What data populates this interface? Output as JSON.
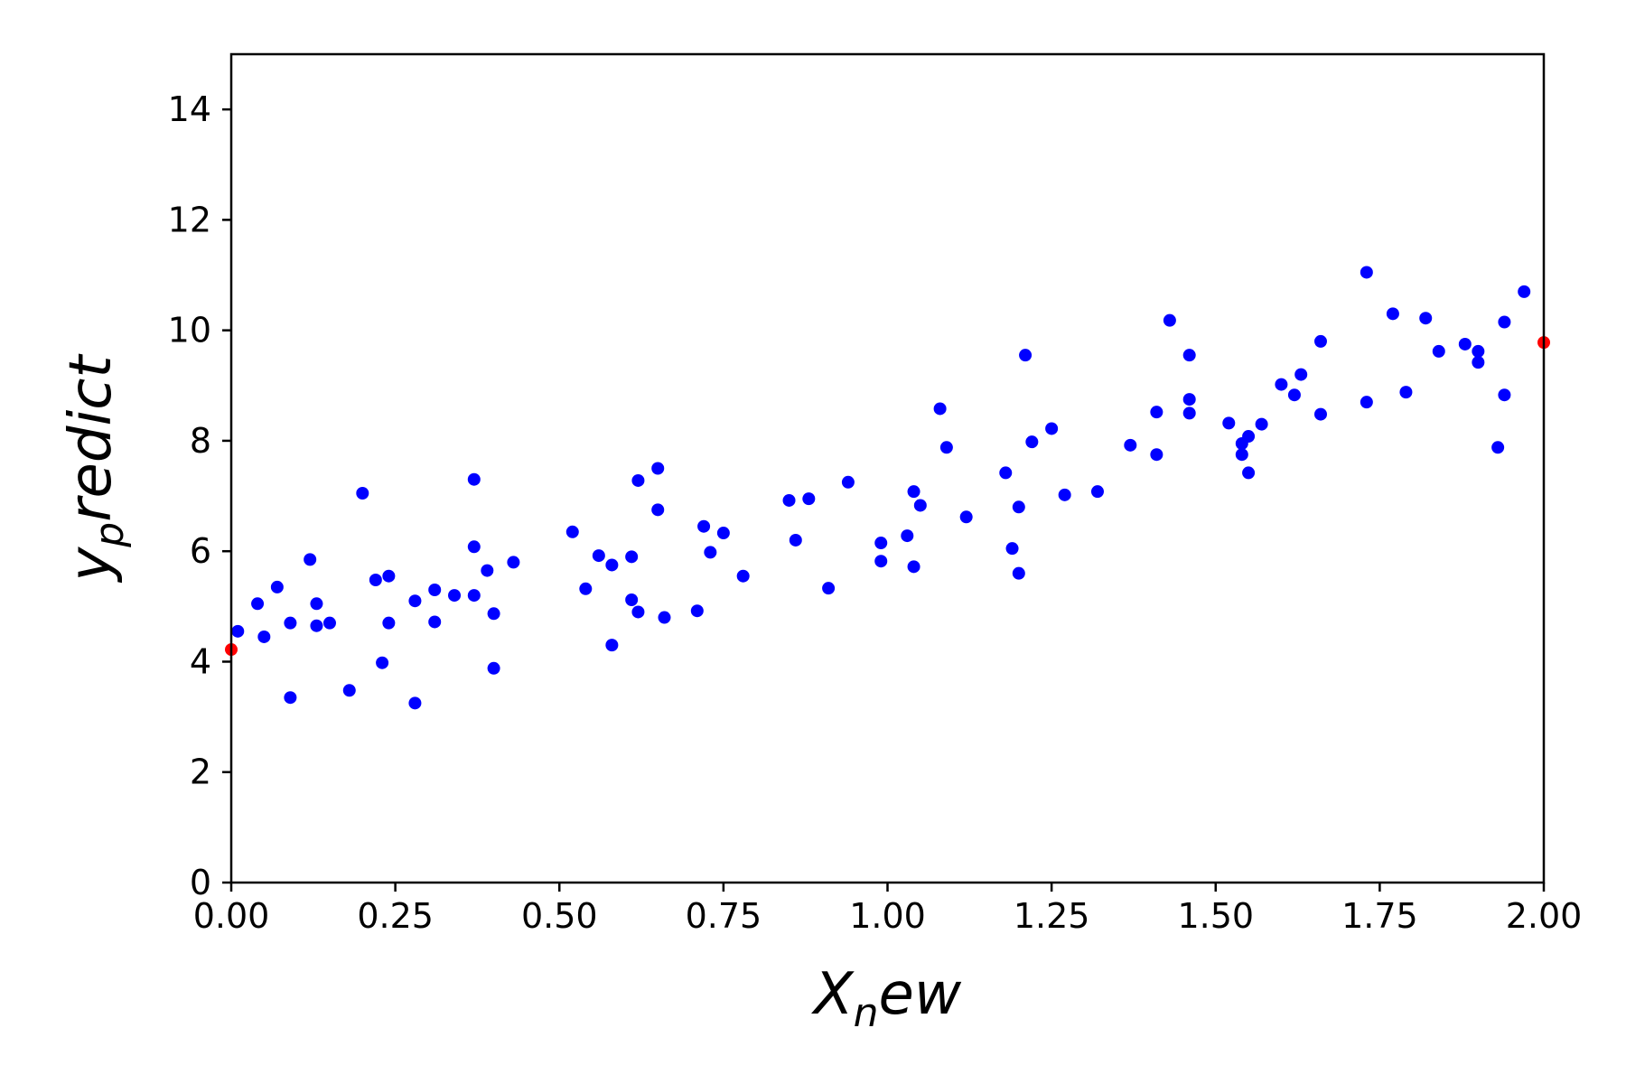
{
  "chart_data": {
    "type": "scatter",
    "xlabel": {
      "base": "X",
      "sub": "n",
      "rest": "ew"
    },
    "ylabel": {
      "base": "y",
      "sub": "p",
      "rest": "redict"
    },
    "xlim": [
      0,
      2
    ],
    "ylim": [
      0,
      15
    ],
    "grid": false,
    "xticks": [
      "0.00",
      "0.25",
      "0.50",
      "0.75",
      "1.00",
      "1.25",
      "1.50",
      "1.75",
      "2.00"
    ],
    "yticks": [
      "0",
      "2",
      "4",
      "6",
      "8",
      "10",
      "12",
      "14"
    ],
    "series": [
      {
        "color": "#0000ff",
        "points": [
          [
            0.01,
            4.55
          ],
          [
            0.04,
            5.05
          ],
          [
            0.05,
            4.45
          ],
          [
            0.07,
            5.35
          ],
          [
            0.09,
            3.35
          ],
          [
            0.09,
            4.7
          ],
          [
            0.12,
            5.85
          ],
          [
            0.13,
            5.05
          ],
          [
            0.13,
            4.65
          ],
          [
            0.15,
            4.7
          ],
          [
            0.18,
            3.48
          ],
          [
            0.2,
            7.05
          ],
          [
            0.22,
            5.48
          ],
          [
            0.23,
            3.98
          ],
          [
            0.24,
            5.55
          ],
          [
            0.24,
            4.7
          ],
          [
            0.28,
            3.25
          ],
          [
            0.28,
            5.1
          ],
          [
            0.31,
            5.3
          ],
          [
            0.31,
            4.72
          ],
          [
            0.34,
            5.2
          ],
          [
            0.37,
            5.2
          ],
          [
            0.37,
            6.08
          ],
          [
            0.37,
            7.3
          ],
          [
            0.39,
            5.65
          ],
          [
            0.4,
            3.88
          ],
          [
            0.4,
            4.87
          ],
          [
            0.43,
            5.8
          ],
          [
            0.52,
            6.35
          ],
          [
            0.54,
            5.32
          ],
          [
            0.56,
            5.92
          ],
          [
            0.58,
            4.3
          ],
          [
            0.58,
            5.75
          ],
          [
            0.61,
            5.9
          ],
          [
            0.61,
            5.12
          ],
          [
            0.62,
            7.28
          ],
          [
            0.62,
            4.9
          ],
          [
            0.65,
            7.5
          ],
          [
            0.65,
            6.75
          ],
          [
            0.66,
            4.8
          ],
          [
            0.71,
            4.92
          ],
          [
            0.72,
            6.45
          ],
          [
            0.73,
            5.98
          ],
          [
            0.75,
            6.33
          ],
          [
            0.78,
            5.55
          ],
          [
            0.85,
            6.92
          ],
          [
            0.86,
            6.2
          ],
          [
            0.88,
            6.95
          ],
          [
            0.91,
            5.33
          ],
          [
            0.94,
            7.25
          ],
          [
            0.99,
            6.15
          ],
          [
            0.99,
            5.82
          ],
          [
            1.03,
            6.28
          ],
          [
            1.04,
            5.72
          ],
          [
            1.04,
            7.08
          ],
          [
            1.05,
            6.83
          ],
          [
            1.08,
            8.58
          ],
          [
            1.09,
            7.88
          ],
          [
            1.12,
            6.62
          ],
          [
            1.18,
            7.42
          ],
          [
            1.19,
            6.05
          ],
          [
            1.2,
            5.6
          ],
          [
            1.2,
            6.8
          ],
          [
            1.21,
            9.55
          ],
          [
            1.22,
            7.98
          ],
          [
            1.25,
            8.22
          ],
          [
            1.27,
            7.02
          ],
          [
            1.32,
            7.08
          ],
          [
            1.37,
            7.92
          ],
          [
            1.41,
            8.52
          ],
          [
            1.41,
            7.75
          ],
          [
            1.43,
            10.18
          ],
          [
            1.46,
            9.55
          ],
          [
            1.46,
            8.75
          ],
          [
            1.46,
            8.5
          ],
          [
            1.52,
            8.32
          ],
          [
            1.54,
            7.75
          ],
          [
            1.54,
            7.95
          ],
          [
            1.55,
            7.42
          ],
          [
            1.55,
            8.08
          ],
          [
            1.57,
            8.3
          ],
          [
            1.6,
            9.02
          ],
          [
            1.62,
            8.83
          ],
          [
            1.63,
            9.2
          ],
          [
            1.66,
            9.8
          ],
          [
            1.66,
            8.48
          ],
          [
            1.73,
            11.05
          ],
          [
            1.73,
            8.7
          ],
          [
            1.77,
            10.3
          ],
          [
            1.79,
            8.88
          ],
          [
            1.82,
            10.22
          ],
          [
            1.84,
            9.62
          ],
          [
            1.88,
            9.75
          ],
          [
            1.9,
            9.62
          ],
          [
            1.9,
            9.42
          ],
          [
            1.93,
            7.88
          ],
          [
            1.94,
            8.83
          ],
          [
            1.94,
            10.15
          ],
          [
            1.97,
            10.7
          ]
        ]
      },
      {
        "color": "#ff0000",
        "points": [
          [
            0.0,
            4.22
          ],
          [
            2.0,
            9.78
          ]
        ]
      }
    ]
  }
}
